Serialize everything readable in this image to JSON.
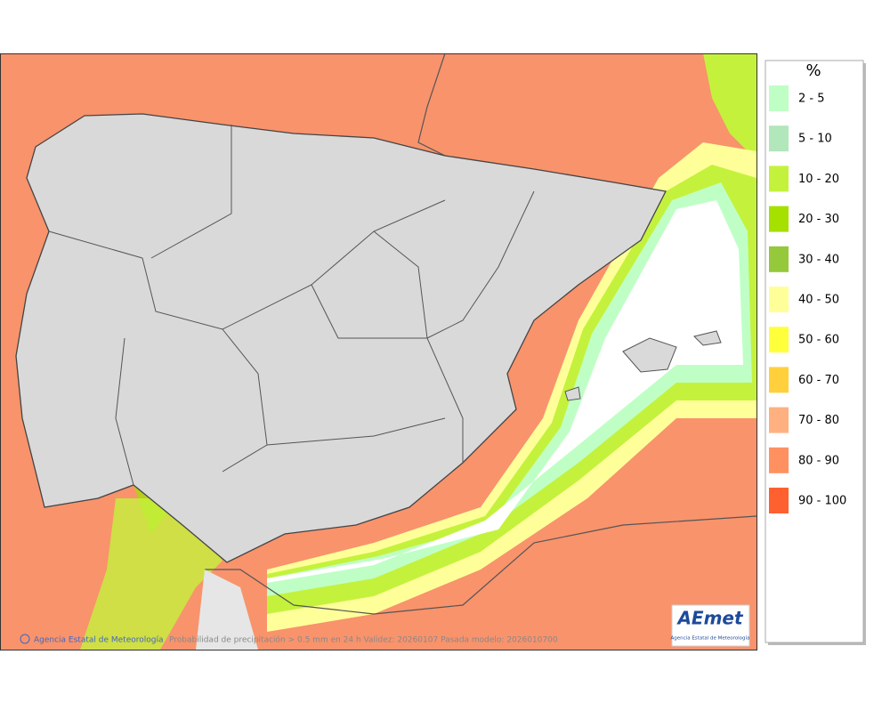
{
  "legend": {
    "title": "%",
    "items": [
      {
        "label": "2 - 5",
        "color": "#bfffc6"
      },
      {
        "label": "5 - 10",
        "color": "#b2e6bb"
      },
      {
        "label": "10 - 20",
        "color": "#c4f23c"
      },
      {
        "label": "20 - 30",
        "color": "#a6e000"
      },
      {
        "label": "30 - 40",
        "color": "#96c83c"
      },
      {
        "label": "40 - 50",
        "color": "#ffff9a"
      },
      {
        "label": "50 - 60",
        "color": "#ffff3c"
      },
      {
        "label": "60 - 70",
        "color": "#ffd03c"
      },
      {
        "label": "70 - 80",
        "color": "#ffb080"
      },
      {
        "label": "80 - 90",
        "color": "#ff9060"
      },
      {
        "label": "90 - 100",
        "color": "#ff6030"
      }
    ]
  },
  "footer": {
    "credit": "Agencia Estatal de Meteorología",
    "caption": "Probabilidad de precipitación > 0.5 mm en 24 h Validez: 20260107 Pasada modelo: 2026010700"
  },
  "logo": {
    "name": "AEmet",
    "subtitle": "Agencia Estatal de Meteorología"
  }
}
